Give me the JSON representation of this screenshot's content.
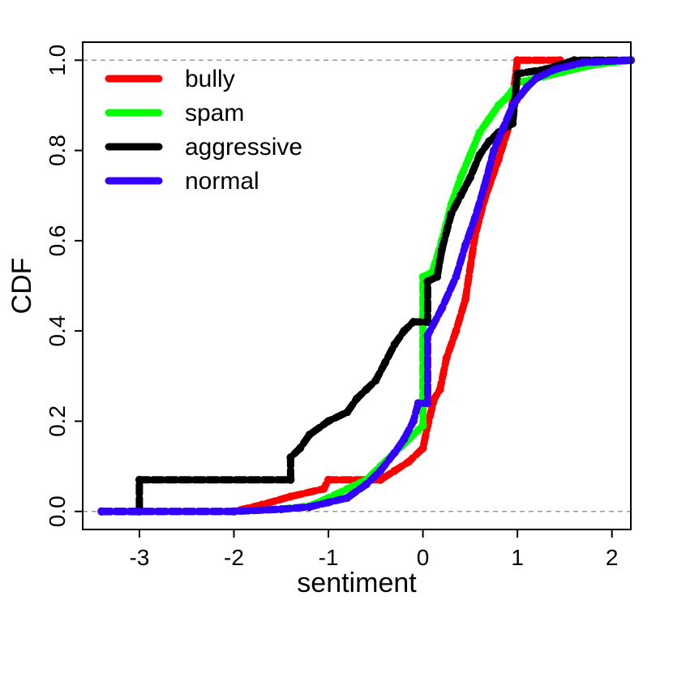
{
  "chart_data": {
    "type": "line",
    "title": "",
    "xlabel": "sentiment",
    "ylabel": "CDF",
    "xlim": [
      -3.6,
      2.2
    ],
    "ylim": [
      -0.04,
      1.04
    ],
    "x_ticks": [
      -3,
      -2,
      -1,
      0,
      1,
      2
    ],
    "x_tick_labels": [
      "-3",
      "-2",
      "-1",
      "0",
      "1",
      "2"
    ],
    "y_ticks": [
      0.0,
      0.2,
      0.4,
      0.6,
      0.8,
      1.0
    ],
    "y_tick_labels": [
      "0.0",
      "0.2",
      "0.4",
      "0.6",
      "0.8",
      "1.0"
    ],
    "grid": false,
    "reference_lines": [
      0,
      1
    ],
    "legend_position": "top-left",
    "series": [
      {
        "name": "bully",
        "color": "#ff0000",
        "points": [
          [
            -3.4,
            0.0
          ],
          [
            -2.0,
            0.0
          ],
          [
            -1.7,
            0.015
          ],
          [
            -1.4,
            0.033
          ],
          [
            -1.05,
            0.05
          ],
          [
            -1.0,
            0.07
          ],
          [
            -0.6,
            0.07
          ],
          [
            -0.45,
            0.07
          ],
          [
            -0.3,
            0.09
          ],
          [
            -0.15,
            0.11
          ],
          [
            0.0,
            0.14
          ],
          [
            0.05,
            0.19
          ],
          [
            0.12,
            0.25
          ],
          [
            0.18,
            0.27
          ],
          [
            0.25,
            0.34
          ],
          [
            0.35,
            0.4
          ],
          [
            0.45,
            0.47
          ],
          [
            0.55,
            0.61
          ],
          [
            0.65,
            0.69
          ],
          [
            0.8,
            0.78
          ],
          [
            0.92,
            0.86
          ],
          [
            1.0,
            1.0
          ],
          [
            1.45,
            1.0
          ]
        ]
      },
      {
        "name": "spam",
        "color": "#00ff00",
        "points": [
          [
            -3.4,
            0.0
          ],
          [
            -2.0,
            0.0
          ],
          [
            -1.5,
            0.005
          ],
          [
            -1.2,
            0.012
          ],
          [
            -1.0,
            0.03
          ],
          [
            -0.8,
            0.05
          ],
          [
            -0.6,
            0.07
          ],
          [
            -0.45,
            0.1
          ],
          [
            -0.3,
            0.13
          ],
          [
            -0.15,
            0.16
          ],
          [
            -0.05,
            0.18
          ],
          [
            0.0,
            0.19
          ],
          [
            0.0,
            0.52
          ],
          [
            0.1,
            0.53
          ],
          [
            0.2,
            0.6
          ],
          [
            0.3,
            0.68
          ],
          [
            0.4,
            0.74
          ],
          [
            0.5,
            0.79
          ],
          [
            0.6,
            0.84
          ],
          [
            0.7,
            0.87
          ],
          [
            0.8,
            0.9
          ],
          [
            0.9,
            0.92
          ],
          [
            1.0,
            0.95
          ],
          [
            1.4,
            0.97
          ],
          [
            1.8,
            0.99
          ],
          [
            2.2,
            1.0
          ]
        ]
      },
      {
        "name": "aggressive",
        "color": "#000000",
        "points": [
          [
            -3.4,
            0.0
          ],
          [
            -3.0,
            0.0
          ],
          [
            -3.0,
            0.07
          ],
          [
            -1.4,
            0.07
          ],
          [
            -1.4,
            0.12
          ],
          [
            -1.3,
            0.14
          ],
          [
            -1.2,
            0.17
          ],
          [
            -1.0,
            0.2
          ],
          [
            -0.8,
            0.22
          ],
          [
            -0.7,
            0.25
          ],
          [
            -0.6,
            0.27
          ],
          [
            -0.5,
            0.29
          ],
          [
            -0.4,
            0.33
          ],
          [
            -0.3,
            0.37
          ],
          [
            -0.2,
            0.4
          ],
          [
            -0.1,
            0.42
          ],
          [
            0.05,
            0.42
          ],
          [
            0.05,
            0.51
          ],
          [
            0.15,
            0.52
          ],
          [
            0.2,
            0.58
          ],
          [
            0.3,
            0.66
          ],
          [
            0.4,
            0.7
          ],
          [
            0.5,
            0.74
          ],
          [
            0.6,
            0.79
          ],
          [
            0.7,
            0.82
          ],
          [
            0.8,
            0.84
          ],
          [
            0.95,
            0.86
          ],
          [
            1.0,
            0.97
          ],
          [
            1.3,
            0.98
          ],
          [
            1.6,
            1.0
          ],
          [
            2.2,
            1.0
          ]
        ]
      },
      {
        "name": "normal",
        "color": "#3300ff",
        "points": [
          [
            -3.4,
            0.0
          ],
          [
            -2.0,
            0.0
          ],
          [
            -1.5,
            0.005
          ],
          [
            -1.2,
            0.01
          ],
          [
            -1.0,
            0.02
          ],
          [
            -0.8,
            0.03
          ],
          [
            -0.6,
            0.06
          ],
          [
            -0.45,
            0.09
          ],
          [
            -0.3,
            0.13
          ],
          [
            -0.2,
            0.16
          ],
          [
            -0.1,
            0.2
          ],
          [
            -0.05,
            0.24
          ],
          [
            0.05,
            0.24
          ],
          [
            0.05,
            0.39
          ],
          [
            0.2,
            0.45
          ],
          [
            0.35,
            0.52
          ],
          [
            0.45,
            0.59
          ],
          [
            0.55,
            0.65
          ],
          [
            0.65,
            0.72
          ],
          [
            0.75,
            0.8
          ],
          [
            0.85,
            0.85
          ],
          [
            0.95,
            0.9
          ],
          [
            1.1,
            0.94
          ],
          [
            1.2,
            0.96
          ],
          [
            1.4,
            0.98
          ],
          [
            1.7,
            0.995
          ],
          [
            2.2,
            1.0
          ]
        ]
      }
    ]
  }
}
